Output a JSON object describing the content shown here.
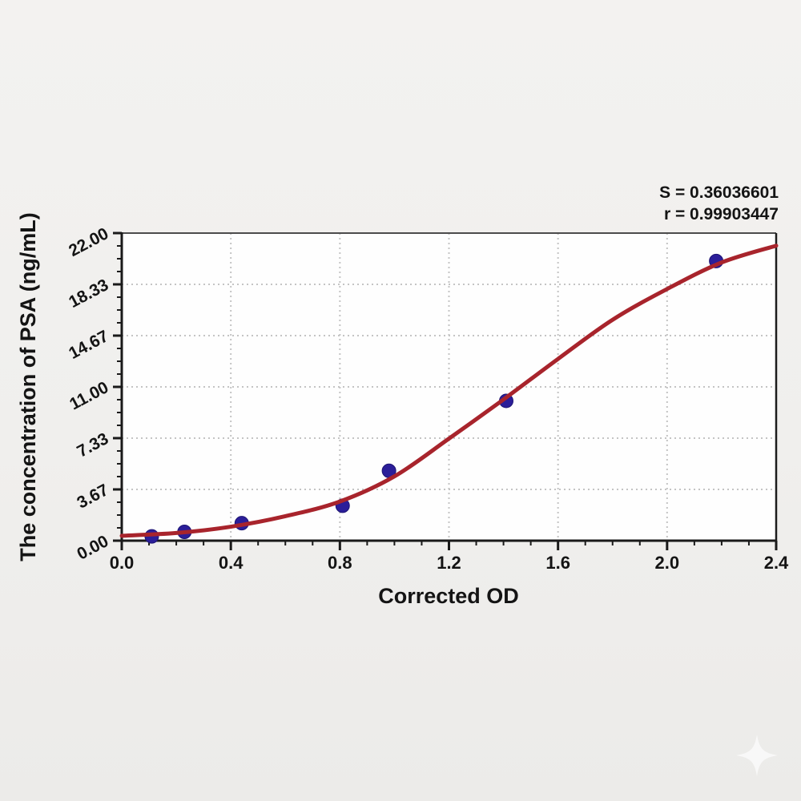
{
  "annotation": {
    "line1": "S = 0.36036601",
    "line2": "r = 0.99903447"
  },
  "chart_data": {
    "type": "scatter",
    "title": "",
    "xlabel": "Corrected OD",
    "ylabel": "The concentration of PSA (ng/mL)",
    "xlim": [
      0,
      2.4
    ],
    "ylim": [
      0,
      22
    ],
    "grid": "dotted-major-both-axes",
    "legend": "none",
    "x_tick_labels": [
      "0.0",
      "0.4",
      "0.8",
      "1.2",
      "1.6",
      "2.0",
      "2.4"
    ],
    "y_tick_labels": [
      "0.00",
      "3.67",
      "7.33",
      "11.00",
      "14.67",
      "18.33",
      "22.00"
    ],
    "x_minor_step": 0.1,
    "y_minor_divisions_per_major": 4,
    "series": [
      {
        "name": "standard-points",
        "type": "scatter",
        "marker": "circle",
        "color": "#2b1e99",
        "x": [
          0.11,
          0.23,
          0.44,
          0.81,
          0.98,
          1.41,
          2.18
        ],
        "y": [
          0.31,
          0.63,
          1.25,
          2.5,
          5,
          10,
          20
        ]
      },
      {
        "name": "4PL-fit-curve",
        "type": "line",
        "color": "#a8242c",
        "x": [
          0,
          0.2,
          0.4,
          0.6,
          0.8,
          1.0,
          1.2,
          1.4,
          1.6,
          1.8,
          2.0,
          2.2,
          2.4
        ],
        "y": [
          0.35,
          0.55,
          1.0,
          1.75,
          2.8,
          4.6,
          7.3,
          10.1,
          13.0,
          15.8,
          18.0,
          19.9,
          21.1
        ]
      }
    ],
    "stats": {
      "S": "0.36036601",
      "r": "0.99903447"
    },
    "colors": {
      "curve": "#a8242c",
      "marker": "#2b1e99",
      "grid": "#c4c4c4",
      "axis": "#1a1a1a",
      "plot_background": "#fefefe",
      "page_background": "#f0efed"
    }
  },
  "watermark": {
    "icon": "sparkle"
  }
}
